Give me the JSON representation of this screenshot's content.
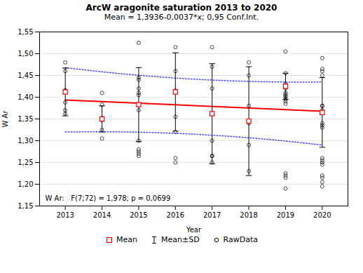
{
  "chart_data": {
    "type": "scatter",
    "title": "ArcW aragonite saturation 2013 to 2020",
    "subtitle": "Mean = 1,3936-0,0037*x; 0,95 Conf.Int.",
    "x_label": "Year",
    "y_label": "W Ar",
    "x": [
      2013,
      2014,
      2015,
      2016,
      2017,
      2018,
      2019,
      2020
    ],
    "xlim": [
      2012.3,
      2020.7
    ],
    "xticks": [
      2013,
      2014,
      2015,
      2016,
      2017,
      2018,
      2019,
      2020
    ],
    "ylim": [
      1.15,
      1.55
    ],
    "yticks": [
      {
        "value": 1.15,
        "label": "1,15"
      },
      {
        "value": 1.2,
        "label": "1,20"
      },
      {
        "value": 1.25,
        "label": "1,25"
      },
      {
        "value": 1.3,
        "label": "1,30"
      },
      {
        "value": 1.35,
        "label": "1,35"
      },
      {
        "value": 1.4,
        "label": "1,40"
      },
      {
        "value": 1.45,
        "label": "1,45"
      },
      {
        "value": 1.5,
        "label": "1,50"
      },
      {
        "value": 1.55,
        "label": "1,55"
      }
    ],
    "grid": true,
    "legend": "bottom",
    "annotations": [
      "W Ar:   F(7;72) = 1,978; p = 0,0699"
    ],
    "series": [
      {
        "name": "Mean",
        "type": "scatter",
        "marker": "square",
        "color": "#ff0000",
        "values": [
          1.412,
          1.35,
          1.383,
          1.412,
          1.362,
          1.345,
          1.425,
          1.365
        ]
      },
      {
        "name": "Mean±SD",
        "type": "errorbar",
        "color": "#000000",
        "values": [
          1.412,
          1.35,
          1.383,
          1.412,
          1.362,
          1.345,
          1.425,
          1.365
        ],
        "error": [
          0.055,
          0.03,
          0.085,
          0.09,
          0.115,
          0.125,
          0.03,
          0.08
        ]
      },
      {
        "name": "RawData",
        "type": "scatter",
        "marker": "circle",
        "color": "#000000",
        "values": [
          [
            1.362,
            1.37,
            1.388,
            1.412,
            1.415,
            1.416,
            1.46,
            1.48
          ],
          [
            1.305,
            1.325,
            1.348,
            1.352,
            1.383,
            1.41
          ],
          [
            1.265,
            1.27,
            1.275,
            1.28,
            1.3,
            1.37,
            1.405,
            1.41,
            1.42,
            1.44,
            1.445,
            1.525
          ],
          [
            1.25,
            1.26,
            1.32,
            1.355,
            1.412,
            1.415,
            1.46,
            1.515
          ],
          [
            1.25,
            1.265,
            1.265,
            1.3,
            1.362,
            1.42,
            1.47,
            1.515
          ],
          [
            1.23,
            1.29,
            1.34,
            1.345,
            1.38,
            1.45,
            1.48
          ],
          [
            1.19,
            1.215,
            1.22,
            1.225,
            1.385,
            1.39,
            1.395,
            1.4,
            1.403,
            1.406,
            1.41,
            1.42,
            1.425,
            1.43,
            1.455,
            1.505
          ],
          [
            1.195,
            1.205,
            1.215,
            1.22,
            1.245,
            1.25,
            1.255,
            1.26,
            1.33,
            1.335,
            1.34,
            1.365,
            1.37,
            1.38,
            1.38,
            1.45,
            1.46,
            1.465,
            1.49
          ]
        ]
      }
    ],
    "fit_line": {
      "x": [
        2013,
        2020
      ],
      "values": [
        1.3936,
        1.3677
      ],
      "color": "#ff0000"
    },
    "conf_band": {
      "color": "#4444ff",
      "line_style": "dotted",
      "upper": [
        1.468,
        1.458388,
        1.450408,
        1.444061,
        1.439347,
        1.436265,
        1.434816,
        1.435
      ],
      "lower": [
        1.32,
        1.320612,
        1.319592,
        1.316939,
        1.312653,
        1.306735,
        1.299184,
        1.29
      ]
    }
  }
}
